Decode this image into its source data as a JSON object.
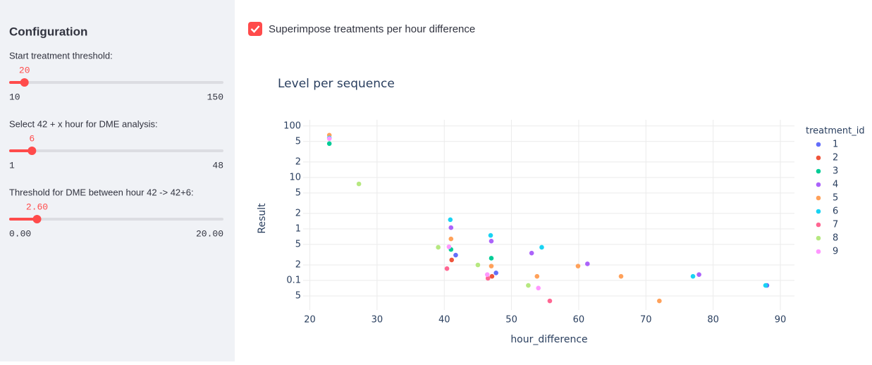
{
  "sidebar": {
    "title": "Configuration",
    "sliders": [
      {
        "label": "Start treatment threshold:",
        "value": "20",
        "min": "10",
        "max": "150"
      },
      {
        "label": "Select 42 + x hour for DME analysis:",
        "value": "6",
        "min": "1",
        "max": "48"
      },
      {
        "label": "Threshold for DME between hour 42 -> 42+6:",
        "value": "2.60",
        "min": "0.00",
        "max": "20.00"
      }
    ]
  },
  "checkbox": {
    "label": "Superimpose treatments per hour difference",
    "checked": true
  },
  "chart_data": {
    "type": "scatter",
    "title": "Level per sequence",
    "x_label": "hour_difference",
    "y_label": "Result",
    "legend_title": "treatment_id",
    "log_y": true,
    "grid": true,
    "xlim": [
      19,
      92.1
    ],
    "ylim": [
      0.0266,
      132
    ],
    "xticks": [
      20,
      30,
      40,
      50,
      60,
      70,
      80,
      90
    ],
    "yticks": [
      100,
      {
        "value": 50,
        "label": "5"
      },
      {
        "value": 20,
        "label": "2"
      },
      10,
      5,
      2,
      1,
      {
        "value": 0.5,
        "label": "5"
      },
      {
        "value": 0.2,
        "label": "2"
      },
      0.1,
      {
        "value": 0.05,
        "label": "5"
      }
    ],
    "series": [
      {
        "name": "1",
        "color": "#636efa",
        "x": [
          41.7,
          47.7,
          88.0
        ],
        "values": [
          0.31,
          0.14,
          0.08
        ]
      },
      {
        "name": "2",
        "color": "#ef553b",
        "x": [
          41.1,
          47.1
        ],
        "values": [
          0.25,
          0.12
        ]
      },
      {
        "name": "3",
        "color": "#00cc96",
        "x": [
          22.9,
          41.0,
          47.0
        ],
        "values": [
          45.5,
          0.4,
          0.27
        ]
      },
      {
        "name": "4",
        "color": "#ab63fa",
        "x": [
          41.0,
          47.0,
          53.0,
          61.3,
          77.9
        ],
        "values": [
          1.06,
          0.58,
          0.34,
          0.21,
          0.13
        ]
      },
      {
        "name": "5",
        "color": "#ffa15a",
        "x": [
          22.9,
          41.0,
          47.0,
          53.8,
          59.9,
          66.3,
          72.0
        ],
        "values": [
          66.4,
          0.64,
          0.19,
          0.12,
          0.19,
          0.12,
          0.04
        ]
      },
      {
        "name": "6",
        "color": "#19d3f3",
        "x": [
          22.9,
          40.9,
          46.9,
          54.5,
          77.0,
          87.8
        ],
        "values": [
          58.5,
          1.51,
          0.75,
          0.44,
          0.12,
          0.08
        ]
      },
      {
        "name": "7",
        "color": "#ff6692",
        "x": [
          40.4,
          46.5,
          55.7
        ],
        "values": [
          0.17,
          0.11,
          0.04
        ]
      },
      {
        "name": "8",
        "color": "#b6e880",
        "x": [
          27.3,
          39.1,
          45.0,
          52.5
        ],
        "values": [
          7.5,
          0.44,
          0.2,
          0.08
        ]
      },
      {
        "name": "9",
        "color": "#ff97ff",
        "x": [
          22.9,
          40.7,
          46.4,
          54.0
        ],
        "values": [
          56.7,
          0.45,
          0.13,
          0.071
        ]
      }
    ]
  }
}
